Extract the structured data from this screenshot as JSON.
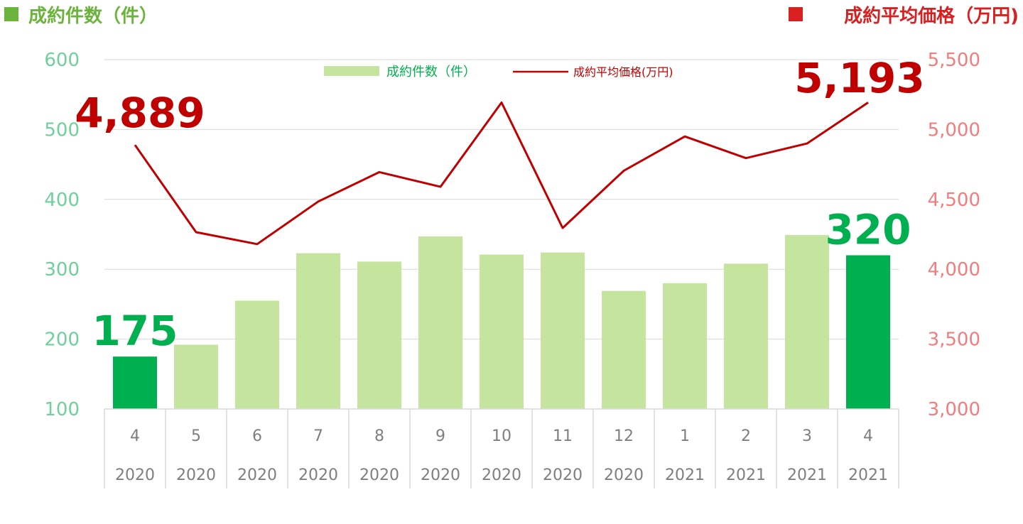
{
  "header": {
    "left_title": "成約件数（件）",
    "right_title": "成約平均価格（万円)"
  },
  "legend": {
    "bars_label": "成約件数（件）",
    "line_label": "成約平均価格(万円)"
  },
  "colors": {
    "bar_light": "#c5e59e",
    "bar_highlight": "#00b050",
    "line": "#c00000",
    "left_axis": "#6fd09b",
    "right_axis": "#f47c7c",
    "left_title": "#6ab43b",
    "right_title": "#d92020",
    "grid": "#d9d9d9",
    "category": "#7f7f7f"
  },
  "chart_data": {
    "type": "bar",
    "categories": [
      {
        "month": "4",
        "year": "2020"
      },
      {
        "month": "5",
        "year": "2020"
      },
      {
        "month": "6",
        "year": "2020"
      },
      {
        "month": "7",
        "year": "2020"
      },
      {
        "month": "8",
        "year": "2020"
      },
      {
        "month": "9",
        "year": "2020"
      },
      {
        "month": "10",
        "year": "2020"
      },
      {
        "month": "11",
        "year": "2020"
      },
      {
        "month": "12",
        "year": "2020"
      },
      {
        "month": "1",
        "year": "2021"
      },
      {
        "month": "2",
        "year": "2021"
      },
      {
        "month": "3",
        "year": "2021"
      },
      {
        "month": "4",
        "year": "2021"
      }
    ],
    "series": [
      {
        "name": "成約件数（件）",
        "type": "bar",
        "axis": "left",
        "values": [
          175,
          192,
          255,
          323,
          311,
          347,
          321,
          324,
          269,
          280,
          308,
          349,
          320
        ],
        "highlight_indices": [
          0,
          12
        ]
      },
      {
        "name": "成約平均価格(万円)",
        "type": "line",
        "axis": "right",
        "values": [
          4889,
          4265,
          4180,
          4485,
          4695,
          4590,
          5193,
          4295,
          4705,
          4950,
          4795,
          4900,
          5193
        ]
      }
    ],
    "left_axis": {
      "ylim": [
        100,
        600
      ],
      "ticks": [
        "100",
        "200",
        "300",
        "400",
        "500",
        "600"
      ]
    },
    "right_axis": {
      "ylim": [
        3000,
        5500
      ],
      "ticks": [
        "3,000",
        "3,500",
        "4,000",
        "4,500",
        "5,000",
        "5,500"
      ]
    },
    "callouts": [
      {
        "series": 1,
        "index": 0,
        "text": "4,889"
      },
      {
        "series": 1,
        "index": 12,
        "text": "5,193"
      },
      {
        "series": 0,
        "index": 0,
        "text": "175"
      },
      {
        "series": 0,
        "index": 12,
        "text": "320"
      }
    ],
    "grid": true,
    "legend_position": "top-center"
  }
}
